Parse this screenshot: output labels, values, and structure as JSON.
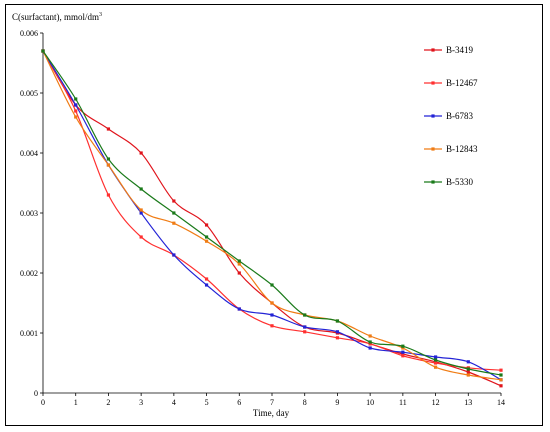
{
  "chart_data": {
    "type": "line",
    "ylabel": "C(surfactant), mmol/dm",
    "ylabel_sup": "3",
    "xlabel": "Time, day",
    "xlim": [
      0,
      14
    ],
    "ylim": [
      0,
      0.006
    ],
    "x_ticks": [
      "0",
      "1",
      "2",
      "3",
      "4",
      "5",
      "6",
      "7",
      "8",
      "9",
      "10",
      "11",
      "12",
      "13",
      "14"
    ],
    "y_ticks": [
      "0",
      "0.001",
      "0.002",
      "0.003",
      "0.004",
      "0.005",
      "0.006"
    ],
    "grid": false,
    "legend_position": "right",
    "x": [
      0,
      1,
      2,
      3,
      4,
      5,
      6,
      7,
      8,
      9,
      10,
      11,
      12,
      13,
      14
    ],
    "series": [
      {
        "name": "B-3419",
        "color": "#e0141c",
        "values": [
          0.0057,
          0.0048,
          0.0044,
          0.004,
          0.0032,
          0.0028,
          0.002,
          0.0015,
          0.0011,
          0.001,
          0.00082,
          0.00065,
          0.00052,
          0.00035,
          0.00012
        ]
      },
      {
        "name": "B-12467",
        "color": "#ff3030",
        "values": [
          0.0057,
          0.0047,
          0.0033,
          0.0026,
          0.0023,
          0.0019,
          0.0014,
          0.00112,
          0.00102,
          0.00092,
          0.00082,
          0.00062,
          0.0005,
          0.00042,
          0.00038
        ]
      },
      {
        "name": "B-6783",
        "color": "#2323d6",
        "values": [
          0.0057,
          0.0048,
          0.0038,
          0.003,
          0.0023,
          0.0018,
          0.0014,
          0.0013,
          0.0011,
          0.00102,
          0.00075,
          0.00068,
          0.0006,
          0.00052,
          0.00022
        ]
      },
      {
        "name": "B-12843",
        "color": "#f07c14",
        "values": [
          0.0057,
          0.0046,
          0.0038,
          0.00305,
          0.00283,
          0.00253,
          0.00215,
          0.0015,
          0.0013,
          0.0012,
          0.00095,
          0.00075,
          0.00043,
          0.0003,
          0.00022
        ]
      },
      {
        "name": "B-5330",
        "color": "#1a7a1a",
        "values": [
          0.0057,
          0.0049,
          0.0039,
          0.0034,
          0.003,
          0.0026,
          0.0022,
          0.0018,
          0.0013,
          0.0012,
          0.00085,
          0.00078,
          0.00055,
          0.0004,
          0.0003
        ]
      }
    ]
  }
}
